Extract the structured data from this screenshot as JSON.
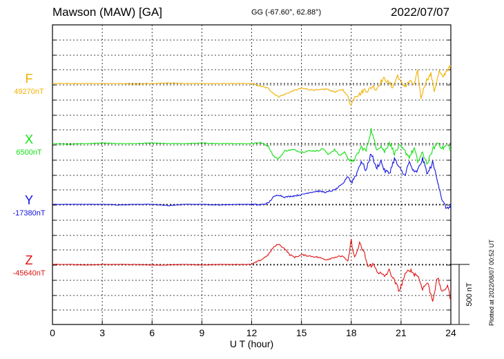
{
  "header": {
    "station": "Mawson (MAW)  [GA]",
    "coords": "GG (-67.60°,  62.88°)",
    "date": "2022/07/07"
  },
  "footer": {
    "plotted": "Plotted at 2022/08/07 00:52 UT"
  },
  "chart_data": {
    "type": "line",
    "title": "Mawson (MAW)  [GA]",
    "xlabel": "U T (hour)",
    "ylabel": "",
    "xlim": [
      0,
      24
    ],
    "xticks": [
      "0",
      "3",
      "6",
      "9",
      "12",
      "15",
      "18",
      "21",
      "24"
    ],
    "grid": true,
    "scale_bar_label": "500 nT",
    "scale_bar_nT": 500,
    "series": [
      {
        "name": "F",
        "baseline_label": "49270nT",
        "baseline_nT": 49270,
        "color": "#f0b000",
        "x": [
          0,
          1,
          2,
          3,
          4,
          5,
          6,
          7,
          8,
          9,
          10,
          11,
          12,
          12.2,
          12.5,
          13,
          13.3,
          13.6,
          14,
          14.5,
          15,
          15.5,
          16,
          16.5,
          17,
          17.5,
          17.8,
          18,
          18.2,
          18.5,
          18.8,
          19,
          19.3,
          19.5,
          19.8,
          20,
          20.3,
          20.5,
          20.8,
          21,
          21.3,
          21.5,
          21.8,
          22,
          22.2,
          22.5,
          22.8,
          23,
          23.3,
          23.5,
          23.8,
          24
        ],
        "offset": [
          0,
          0,
          0,
          0,
          0,
          -5,
          0,
          5,
          0,
          0,
          0,
          0,
          0,
          -10,
          -20,
          -40,
          -80,
          -110,
          -90,
          -60,
          -40,
          -50,
          -55,
          -45,
          -70,
          -50,
          -110,
          -180,
          -100,
          -90,
          -50,
          -60,
          -20,
          -50,
          20,
          40,
          0,
          -30,
          70,
          0,
          -20,
          20,
          -10,
          100,
          -120,
          20,
          80,
          -60,
          100,
          50,
          120,
          140
        ]
      },
      {
        "name": "X",
        "baseline_label": "6500nT",
        "baseline_nT": 6500,
        "color": "#10e010",
        "x": [
          0,
          1,
          2,
          3,
          4,
          5,
          6,
          7,
          8,
          9,
          10,
          11,
          12,
          12.5,
          13,
          13.3,
          13.6,
          14,
          14.5,
          15,
          15.5,
          16,
          16.3,
          16.6,
          17,
          17.3,
          17.6,
          18,
          18.3,
          18.6,
          18.9,
          19.2,
          19.5,
          19.8,
          20,
          20.3,
          20.6,
          20.9,
          21.2,
          21.5,
          21.8,
          22,
          22.3,
          22.6,
          22.9,
          23.2,
          23.5,
          23.8,
          24
        ],
        "offset": [
          0,
          -5,
          0,
          5,
          0,
          0,
          5,
          0,
          0,
          5,
          0,
          0,
          0,
          10,
          -20,
          -100,
          -130,
          -60,
          -50,
          -70,
          -60,
          -60,
          -40,
          -90,
          -50,
          -100,
          -70,
          -160,
          -110,
          -30,
          -60,
          120,
          -40,
          -20,
          -70,
          10,
          -80,
          -20,
          -60,
          -110,
          -40,
          -150,
          -80,
          -170,
          -50,
          10,
          -40,
          -10,
          -50
        ]
      },
      {
        "name": "Y",
        "baseline_label": "-17380nT",
        "baseline_nT": -17380,
        "color": "#1010e0",
        "x": [
          0,
          1,
          2,
          3,
          4,
          5,
          6,
          7,
          8,
          9,
          10,
          11,
          12,
          12.5,
          13,
          13.3,
          13.6,
          14,
          14.5,
          15,
          15.5,
          16,
          16.5,
          17,
          17.5,
          17.8,
          18,
          18.3,
          18.6,
          18.9,
          19.2,
          19.5,
          19.8,
          20,
          20.3,
          20.6,
          20.9,
          21.2,
          21.5,
          21.8,
          22,
          22.3,
          22.6,
          22.9,
          23.2,
          23.5,
          23.8,
          24
        ],
        "offset": [
          0,
          0,
          0,
          0,
          -5,
          0,
          0,
          -10,
          0,
          0,
          -5,
          0,
          0,
          -5,
          10,
          60,
          80,
          60,
          70,
          80,
          100,
          110,
          100,
          120,
          170,
          240,
          180,
          250,
          360,
          280,
          430,
          300,
          360,
          280,
          260,
          380,
          300,
          240,
          350,
          260,
          280,
          380,
          250,
          350,
          200,
          20,
          -40,
          0
        ]
      },
      {
        "name": "Z",
        "baseline_label": "-45640nT",
        "baseline_nT": -45640,
        "color": "#e01010",
        "x": [
          0,
          1,
          2,
          3,
          4,
          5,
          6,
          7,
          8,
          9,
          10,
          11,
          12,
          12.3,
          12.6,
          13,
          13.3,
          13.6,
          14,
          14.3,
          14.6,
          15,
          15.5,
          16,
          16.5,
          17,
          17.5,
          17.8,
          18,
          18.2,
          18.5,
          18.8,
          19,
          19.3,
          19.6,
          20,
          20.3,
          20.6,
          20.9,
          21.2,
          21.5,
          21.8,
          22,
          22.3,
          22.6,
          22.9,
          23.2,
          23.5,
          23.8,
          24
        ],
        "offset": [
          0,
          0,
          -5,
          0,
          0,
          0,
          -5,
          -5,
          0,
          -5,
          0,
          0,
          0,
          20,
          40,
          80,
          140,
          170,
          130,
          80,
          60,
          80,
          70,
          60,
          40,
          60,
          70,
          20,
          200,
          50,
          170,
          90,
          -20,
          0,
          -60,
          -100,
          -50,
          -140,
          -220,
          -100,
          -40,
          -80,
          -90,
          -200,
          -150,
          -300,
          -110,
          -240,
          -170,
          -300
        ]
      }
    ]
  }
}
